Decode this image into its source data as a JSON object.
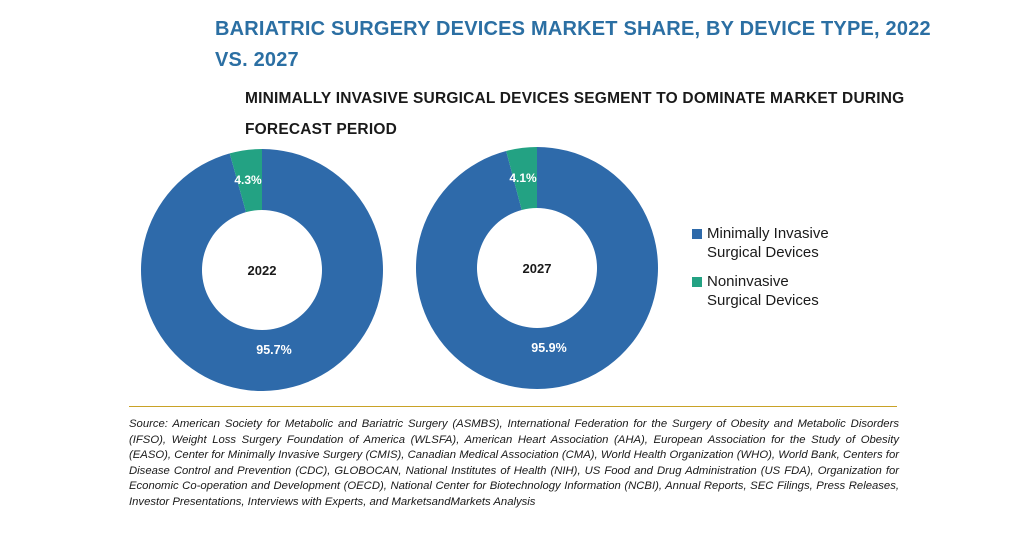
{
  "title": "BARIATRIC SURGERY DEVICES MARKET SHARE, BY DEVICE TYPE, 2022 VS. 2027",
  "subtitle": "MINIMALLY INVASIVE SURGICAL DEVICES SEGMENT TO DOMINATE MARKET DURING FORECAST PERIOD",
  "colors": {
    "minimally_invasive": "#2e6aaa",
    "noninvasive": "#23a283",
    "divider": "#c9a227",
    "title": "#2b6fa3"
  },
  "legend": [
    {
      "label": "Minimally Invasive\nSurgical Devices",
      "color": "#2e6aaa"
    },
    {
      "label": "Noninvasive\nSurgical Devices",
      "color": "#23a283"
    }
  ],
  "chart_data": [
    {
      "type": "pie",
      "center_label": "2022",
      "categories": [
        "Minimally Invasive Surgical Devices",
        "Noninvasive Surgical Devices"
      ],
      "values": [
        95.7,
        4.3
      ],
      "labels": [
        "95.7%",
        "4.3%"
      ]
    },
    {
      "type": "pie",
      "center_label": "2027",
      "categories": [
        "Minimally Invasive Surgical Devices",
        "Noninvasive Surgical Devices"
      ],
      "values": [
        95.9,
        4.1
      ],
      "labels": [
        "95.9%",
        "4.1%"
      ]
    }
  ],
  "source": "Source: American Society for Metabolic and Bariatric Surgery (ASMBS), International Federation for the Surgery of Obesity and Metabolic Disorders (IFSO), Weight Loss Surgery Foundation of America (WLSFA), American Heart Association (AHA), European Association for the Study of Obesity (EASO), Center for Minimally Invasive Surgery (CMIS), Canadian Medical Association (CMA), World Health Organization (WHO), World Bank, Centers for Disease Control and Prevention (CDC), GLOBOCAN, National Institutes of Health (NIH), US Food and Drug Administration (US FDA), Organization for Economic Co-operation and Development (OECD), National Center for Biotechnology Information (NCBI), Annual Reports, SEC Filings, Press Releases, Investor Presentations, Interviews with Experts, and MarketsandMarkets Analysis"
}
